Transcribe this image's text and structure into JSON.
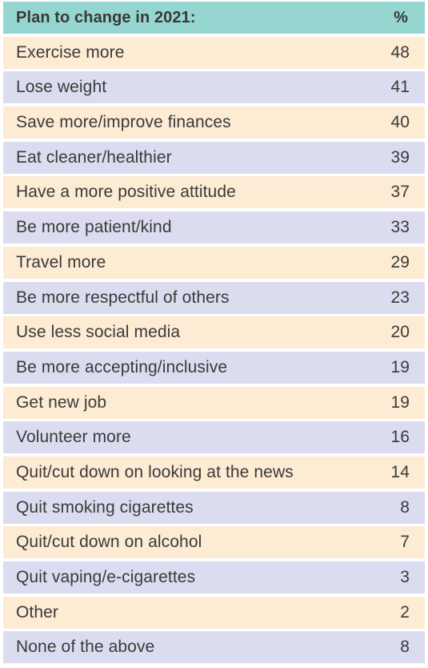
{
  "header": {
    "label": "Plan to change in 2021:",
    "unit": "%"
  },
  "colors": {
    "header": "#96d6d1",
    "row_odd": "#fdebd3",
    "row_even": "#dcdcf0",
    "text": "#3a3a3a"
  },
  "chart_data": {
    "type": "table",
    "columns": [
      "Plan to change in 2021:",
      "%"
    ],
    "categories": [
      "Exercise more",
      "Lose weight",
      "Save more/improve finances",
      "Eat cleaner/healthier",
      "Have a more positive attitude",
      "Be more patient/kind",
      "Travel more",
      "Be more respectful of others",
      "Use less social media",
      "Be more accepting/inclusive",
      "Get new job",
      "Volunteer more",
      "Quit/cut down on looking at the news",
      "Quit smoking cigarettes",
      "Quit/cut down on alcohol",
      "Quit vaping/e-cigarettes",
      "Other",
      "None of the above"
    ],
    "values": [
      48,
      41,
      40,
      39,
      37,
      33,
      29,
      23,
      20,
      19,
      19,
      16,
      14,
      8,
      7,
      3,
      2,
      8
    ]
  }
}
